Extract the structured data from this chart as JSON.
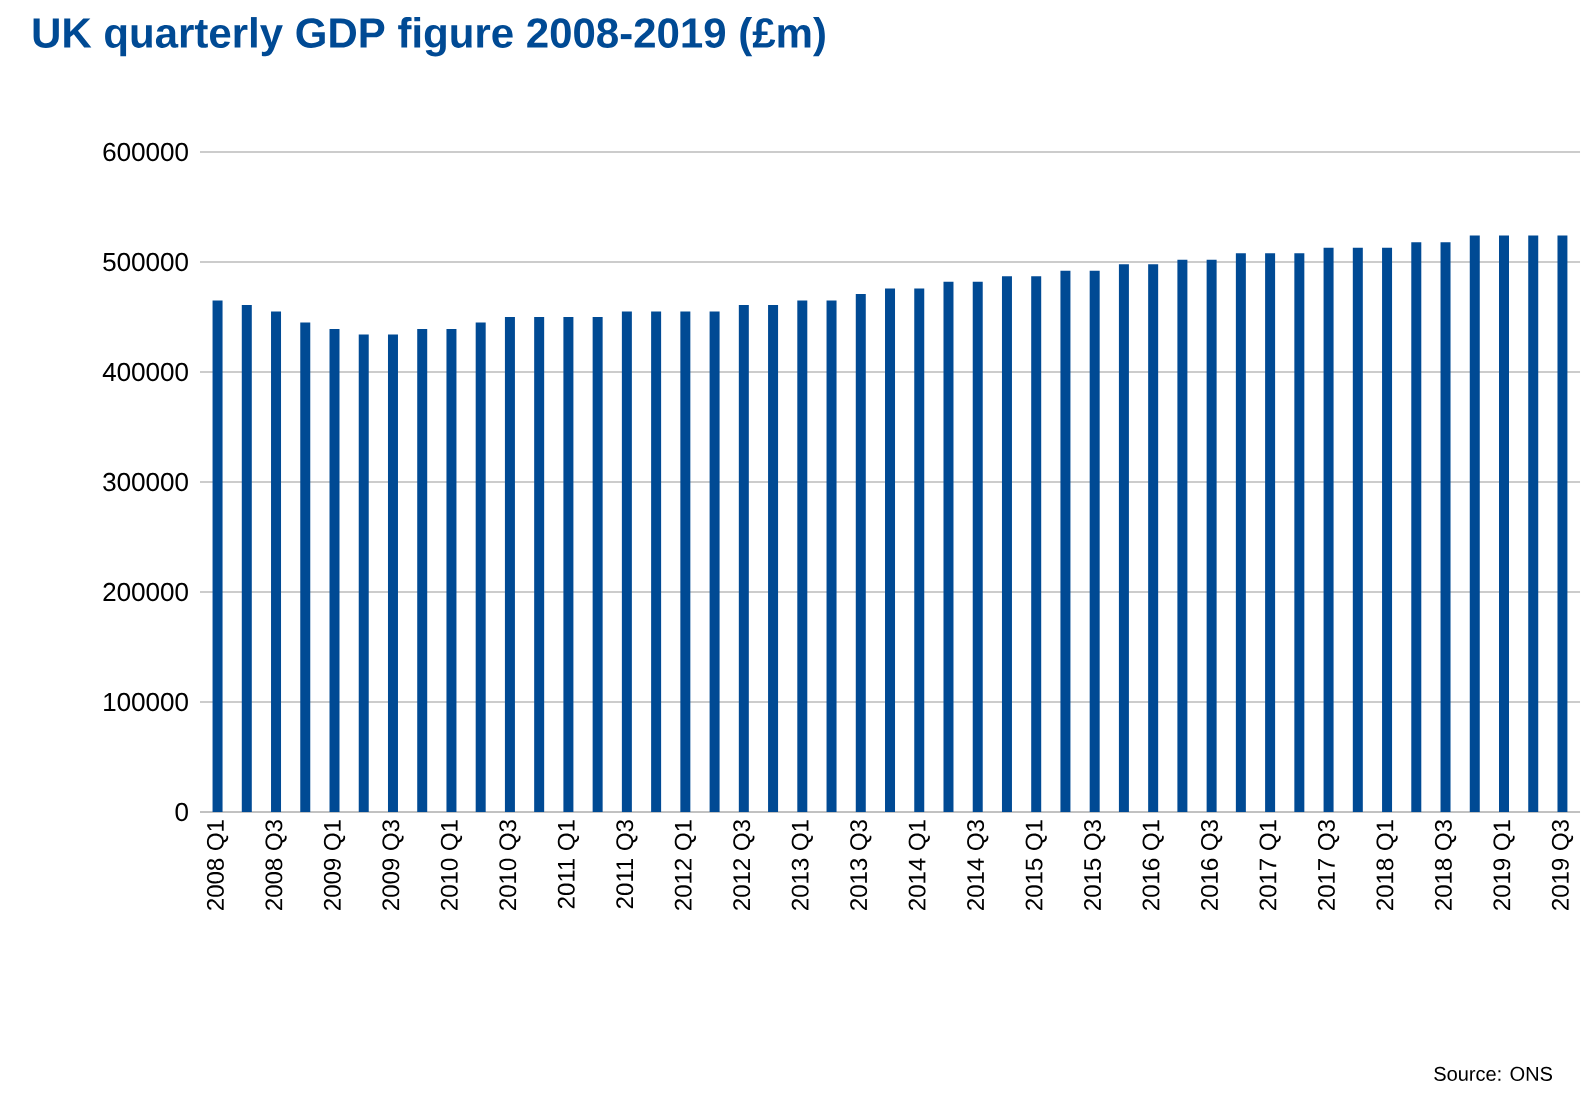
{
  "chart_data": {
    "type": "bar",
    "title": "UK quarterly GDP figure 2008-2019 (£m)",
    "categories": [
      "2008 Q1",
      null,
      "2008 Q3",
      null,
      "2009 Q1",
      null,
      "2009 Q3",
      null,
      "2010 Q1",
      null,
      "2010 Q3",
      null,
      "2011 Q1",
      null,
      "2011 Q3",
      null,
      "2012 Q1",
      null,
      "2012 Q3",
      null,
      "2013 Q1",
      null,
      "2013 Q3",
      null,
      "2014 Q1",
      null,
      "2014 Q3",
      null,
      "2015 Q1",
      null,
      "2015 Q3",
      null,
      "2016 Q1",
      null,
      "2016 Q3",
      null,
      "2017 Q1",
      null,
      "2017 Q3",
      null,
      "2018 Q1",
      null,
      "2018 Q3",
      null,
      "2019 Q1",
      null,
      "2019 Q3"
    ],
    "values": [
      465000,
      461000,
      455000,
      445000,
      439000,
      434000,
      434000,
      439000,
      439000,
      445000,
      450000,
      450000,
      450000,
      450000,
      455000,
      455000,
      455000,
      455000,
      461000,
      461000,
      465000,
      465000,
      471000,
      476000,
      476000,
      482000,
      482000,
      487000,
      487000,
      492000,
      492000,
      498000,
      498000,
      502000,
      502000,
      508000,
      508000,
      508000,
      513000,
      513000,
      513000,
      518000,
      518000,
      524000,
      524000,
      524000,
      524000
    ],
    "color": "#004a94",
    "ylim": [
      0,
      600000
    ],
    "yticks": [
      0,
      100000,
      200000,
      300000,
      400000,
      500000,
      600000
    ],
    "grid": "y",
    "annotations": [
      "Source: ONS"
    ]
  }
}
